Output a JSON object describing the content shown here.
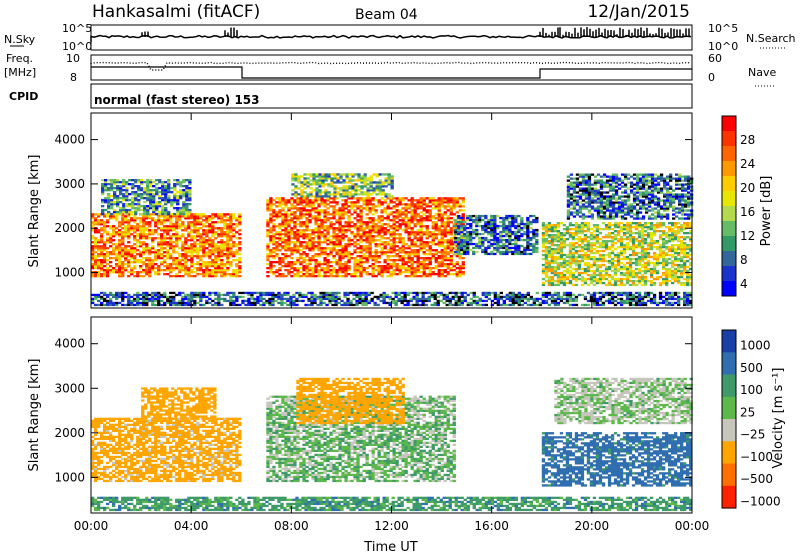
{
  "header": {
    "site": "Hankasalmi (fitACF)",
    "beam": "Beam 04",
    "date": "12/Jan/2015"
  },
  "status_panels": {
    "nsky_label": "N.Sky",
    "nsearch_label": "N.Search",
    "freq_label_1": "Freq.",
    "freq_label_2": "[MHz]",
    "nave_label": "Nave",
    "cpid_label": "CPID",
    "cpid_text": "normal (fast stereo) 153",
    "noise_ticks_left": [
      "10^5",
      "10^0"
    ],
    "noise_ticks_right": [
      "10^5",
      "10^0"
    ],
    "freq_ticks": [
      "10",
      "8"
    ],
    "nave_ticks": [
      "60",
      "0"
    ]
  },
  "chart_data": [
    {
      "type": "heatmap",
      "name": "power",
      "ylabel": "Slant Range [km]",
      "ylim": [
        200,
        4600
      ],
      "yticks": [
        1000,
        2000,
        3000,
        4000
      ],
      "xlim": [
        0,
        24
      ],
      "colorbar_label": "Power [dB]",
      "colorbar_ticks": [
        "28",
        "24",
        "20",
        "16",
        "12",
        "8",
        "4"
      ],
      "colorbar_colors": [
        "#ff0000",
        "#ff3300",
        "#ff6600",
        "#ff9900",
        "#ffcc00",
        "#e6e600",
        "#b3d94d",
        "#66bb66",
        "#339966",
        "#336699",
        "#1a33cc",
        "#0000ff"
      ],
      "echo_regions": [
        {
          "t0": 0.0,
          "t1": 6.0,
          "r0": 900,
          "r1": 2300,
          "level": 0.75
        },
        {
          "t0": 0.4,
          "t1": 4.0,
          "r0": 2300,
          "r1": 3100,
          "level": 0.3
        },
        {
          "t0": 7.0,
          "t1": 14.8,
          "r0": 900,
          "r1": 2700,
          "level": 0.8
        },
        {
          "t0": 8.0,
          "t1": 12.0,
          "r0": 2700,
          "r1": 3200,
          "level": 0.4
        },
        {
          "t0": 14.5,
          "t1": 17.8,
          "r0": 1400,
          "r1": 2300,
          "level": 0.2
        },
        {
          "t0": 18.0,
          "t1": 24.0,
          "r0": 700,
          "r1": 2100,
          "level": 0.5
        },
        {
          "t0": 19.0,
          "t1": 24.0,
          "r0": 2200,
          "r1": 3200,
          "level": 0.2
        },
        {
          "t0": 0.0,
          "t1": 24.0,
          "r0": 250,
          "r1": 550,
          "level": 0.15
        }
      ]
    },
    {
      "type": "heatmap",
      "name": "velocity",
      "ylabel": "Slant Range [km]",
      "ylim": [
        200,
        4600
      ],
      "yticks": [
        1000,
        2000,
        3000,
        4000
      ],
      "xlim": [
        0,
        24
      ],
      "xticks": [
        "00:00",
        "04:00",
        "08:00",
        "12:00",
        "16:00",
        "20:00",
        "00:00"
      ],
      "xlabel": "Time UT",
      "colorbar_label": "Velocity [m s⁻¹]",
      "colorbar_ticks": [
        "1000",
        "500",
        "100",
        "25",
        "−25",
        "−100",
        "−500",
        "−1000"
      ],
      "colorbar_colors": [
        "#1a3fa6",
        "#2f6fb0",
        "#3f9a6a",
        "#5cb84a",
        "#c6c6bc",
        "#ffa500",
        "#ff7000",
        "#ff2000"
      ],
      "echo_regions": [
        {
          "t0": 0.0,
          "t1": 6.0,
          "r0": 900,
          "r1": 2300,
          "v": -150
        },
        {
          "t0": 2.0,
          "t1": 5.0,
          "r0": 2300,
          "r1": 3000,
          "v": -300
        },
        {
          "t0": 7.0,
          "t1": 14.5,
          "r0": 900,
          "r1": 2800,
          "v": 0
        },
        {
          "t0": 8.2,
          "t1": 12.5,
          "r0": 2200,
          "r1": 3200,
          "v": -400
        },
        {
          "t0": 18.0,
          "t1": 24.0,
          "r0": 800,
          "r1": 2000,
          "v": 150
        },
        {
          "t0": 18.5,
          "t1": 24.0,
          "r0": 2200,
          "r1": 3200,
          "v": -30
        },
        {
          "t0": 0.0,
          "t1": 24.0,
          "r0": 250,
          "r1": 550,
          "v": 60
        }
      ]
    }
  ]
}
